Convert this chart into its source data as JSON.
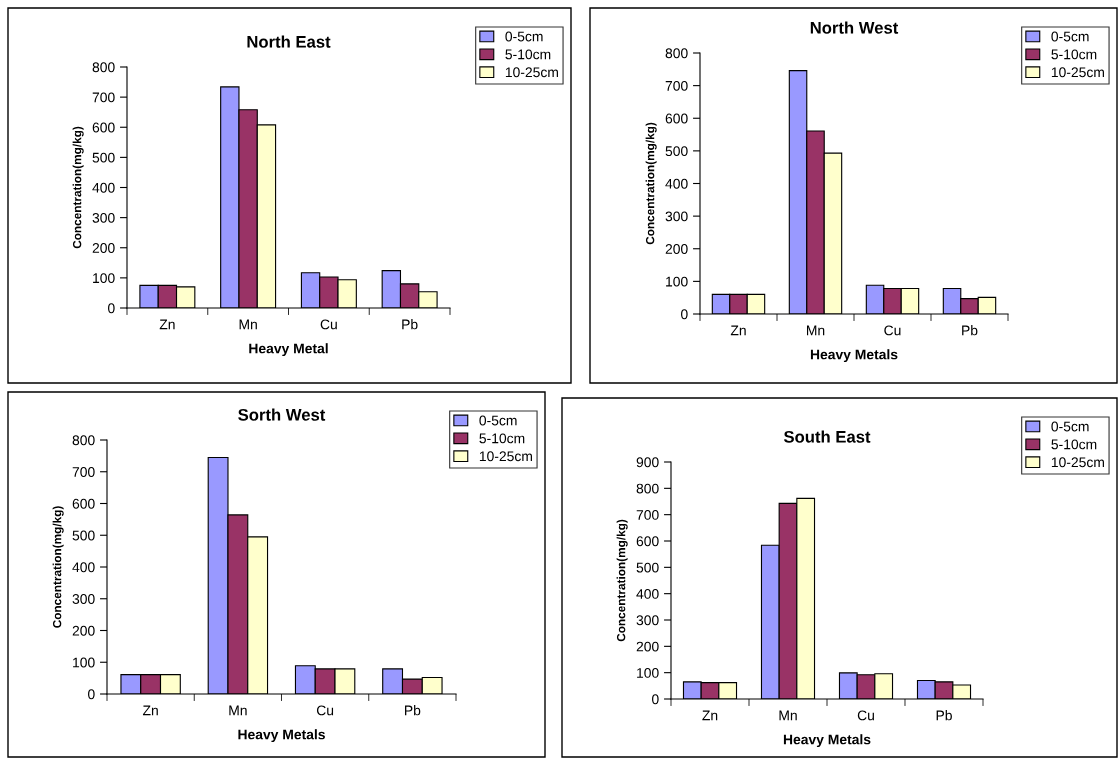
{
  "chart_data": [
    {
      "type": "bar",
      "title": "North East",
      "xlabel": "Heavy Metal",
      "ylabel": "Concentration(mg/kg)",
      "categories": [
        "Zn",
        "Mn",
        "Cu",
        "Pb"
      ],
      "ylim": [
        0,
        800
      ],
      "yticks": [
        0,
        100,
        200,
        300,
        400,
        500,
        600,
        700,
        800
      ],
      "grid": false,
      "legend": "top right",
      "series": [
        {
          "name": "0-5cm",
          "color": "#9999ff",
          "values": [
            75,
            734,
            117,
            124
          ]
        },
        {
          "name": "5-10cm",
          "color": "#993366",
          "values": [
            75,
            658,
            103,
            80
          ]
        },
        {
          "name": "10-25cm",
          "color": "#ffffcc",
          "values": [
            70,
            608,
            94,
            54
          ]
        }
      ]
    },
    {
      "type": "bar",
      "title": "North West",
      "xlabel": "Heavy Metals",
      "ylabel": "Concentration(mg/kg)",
      "categories": [
        "Zn",
        "Mn",
        "Cu",
        "Pb"
      ],
      "ylim": [
        0,
        800
      ],
      "yticks": [
        0,
        100,
        200,
        300,
        400,
        500,
        600,
        700,
        800
      ],
      "grid": false,
      "legend": "top right",
      "series": [
        {
          "name": "0-5cm",
          "color": "#9999ff",
          "values": [
            60,
            746,
            88,
            78
          ]
        },
        {
          "name": "5-10cm",
          "color": "#993366",
          "values": [
            60,
            561,
            78,
            47
          ]
        },
        {
          "name": "10-25cm",
          "color": "#ffffcc",
          "values": [
            60,
            493,
            78,
            51
          ]
        }
      ]
    },
    {
      "type": "bar",
      "title": "Sorth West",
      "xlabel": "Heavy Metals",
      "ylabel": "Concentration(mg/kg)",
      "categories": [
        "Zn",
        "Mn",
        "Cu",
        "Pb"
      ],
      "ylim": [
        0,
        800
      ],
      "yticks": [
        0,
        100,
        200,
        300,
        400,
        500,
        600,
        700,
        800
      ],
      "grid": false,
      "legend": "top right",
      "series": [
        {
          "name": "0-5cm",
          "color": "#9999ff",
          "values": [
            61,
            745,
            89,
            79
          ]
        },
        {
          "name": "5-10cm",
          "color": "#993366",
          "values": [
            61,
            564,
            79,
            47
          ]
        },
        {
          "name": "10-25cm",
          "color": "#ffffcc",
          "values": [
            61,
            495,
            79,
            52
          ]
        }
      ]
    },
    {
      "type": "bar",
      "title": "South East",
      "xlabel": "Heavy Metals",
      "ylabel": "Concentration(mg/kg)",
      "categories": [
        "Zn",
        "Mn",
        "Cu",
        "Pb"
      ],
      "ylim": [
        0,
        900
      ],
      "yticks": [
        0,
        100,
        200,
        300,
        400,
        500,
        600,
        700,
        800,
        900
      ],
      "grid": false,
      "legend": "top right",
      "series": [
        {
          "name": "0-5cm",
          "color": "#9999ff",
          "values": [
            65,
            584,
            99,
            70
          ]
        },
        {
          "name": "5-10cm",
          "color": "#993366",
          "values": [
            62,
            743,
            92,
            65
          ]
        },
        {
          "name": "10-25cm",
          "color": "#ffffcc",
          "values": [
            62,
            762,
            96,
            53
          ]
        }
      ]
    }
  ]
}
